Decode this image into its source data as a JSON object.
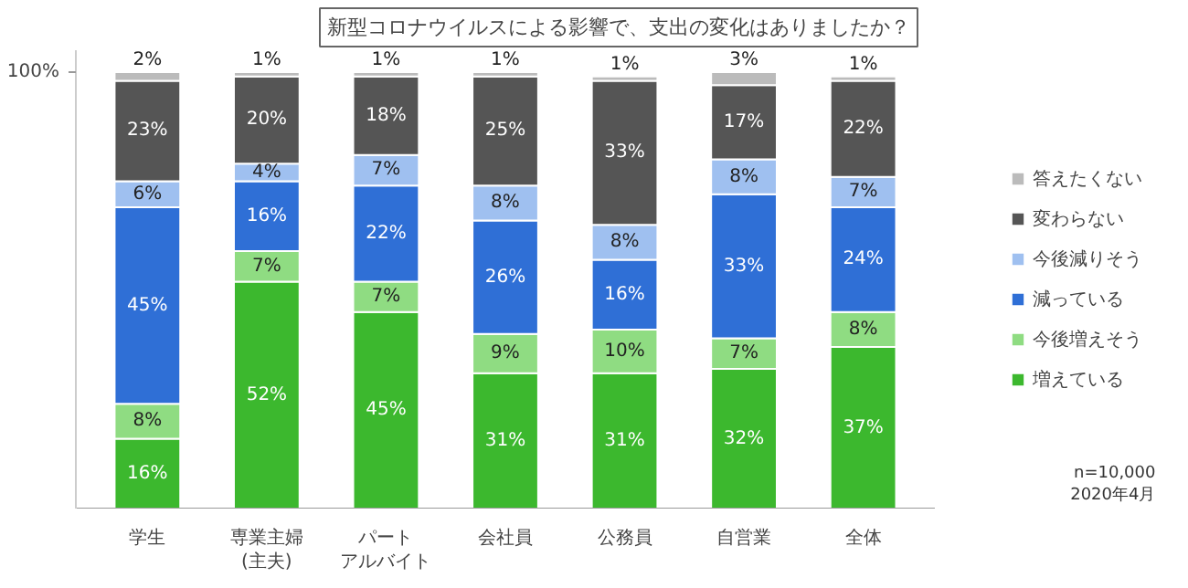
{
  "chart_data": {
    "type": "bar",
    "title": "新型コロナウイルスによる影響で、支出の変化はありましたか？",
    "categories": [
      "学生",
      "専業主婦(主夫)",
      "パートアルバイト",
      "会社員",
      "公務員",
      "自営業",
      "全体"
    ],
    "stacked": true,
    "ylim": [
      0,
      105
    ],
    "yticks": [
      {
        "value": 100,
        "label": "100%"
      }
    ],
    "grid": false,
    "legend": "right",
    "series": [
      {
        "name": "増えている",
        "color": "#3cb82e",
        "values": [
          16,
          52,
          45,
          31,
          31,
          32,
          37
        ],
        "value_labels": [
          "16%",
          "52%",
          "45%",
          "31%",
          "31%",
          "32%",
          "37%"
        ]
      },
      {
        "name": "今後増えそう",
        "color": "#8fdc82",
        "values": [
          8,
          7,
          7,
          9,
          10,
          7,
          8
        ],
        "value_labels": [
          "8%",
          "7%",
          "7%",
          "9%",
          "10%",
          "7%",
          "8%"
        ]
      },
      {
        "name": "減っている",
        "color": "#2f6fd6",
        "values": [
          45,
          16,
          22,
          26,
          16,
          33,
          24
        ],
        "value_labels": [
          "45%",
          "16%",
          "22%",
          "26%",
          "16%",
          "33%",
          "24%"
        ]
      },
      {
        "name": "今後減りそう",
        "color": "#9fc0f0",
        "values": [
          6,
          4,
          7,
          8,
          8,
          8,
          7
        ],
        "value_labels": [
          "6%",
          "4%",
          "7%",
          "8%",
          "8%",
          "8%",
          "7%"
        ]
      },
      {
        "name": "変わらない",
        "color": "#555555",
        "values": [
          23,
          20,
          18,
          25,
          33,
          17,
          22
        ],
        "value_labels": [
          "23%",
          "20%",
          "18%",
          "25%",
          "33%",
          "17%",
          "22%"
        ]
      },
      {
        "name": "答えたくない",
        "color": "#bbbbbb",
        "values": [
          2,
          1,
          1,
          1,
          1,
          3,
          1
        ],
        "value_labels": [
          "2%",
          "1%",
          "1%",
          "1%",
          "1%",
          "3%",
          "1%"
        ]
      }
    ],
    "annotations": [
      "n=10,000",
      "2020年4月"
    ]
  }
}
